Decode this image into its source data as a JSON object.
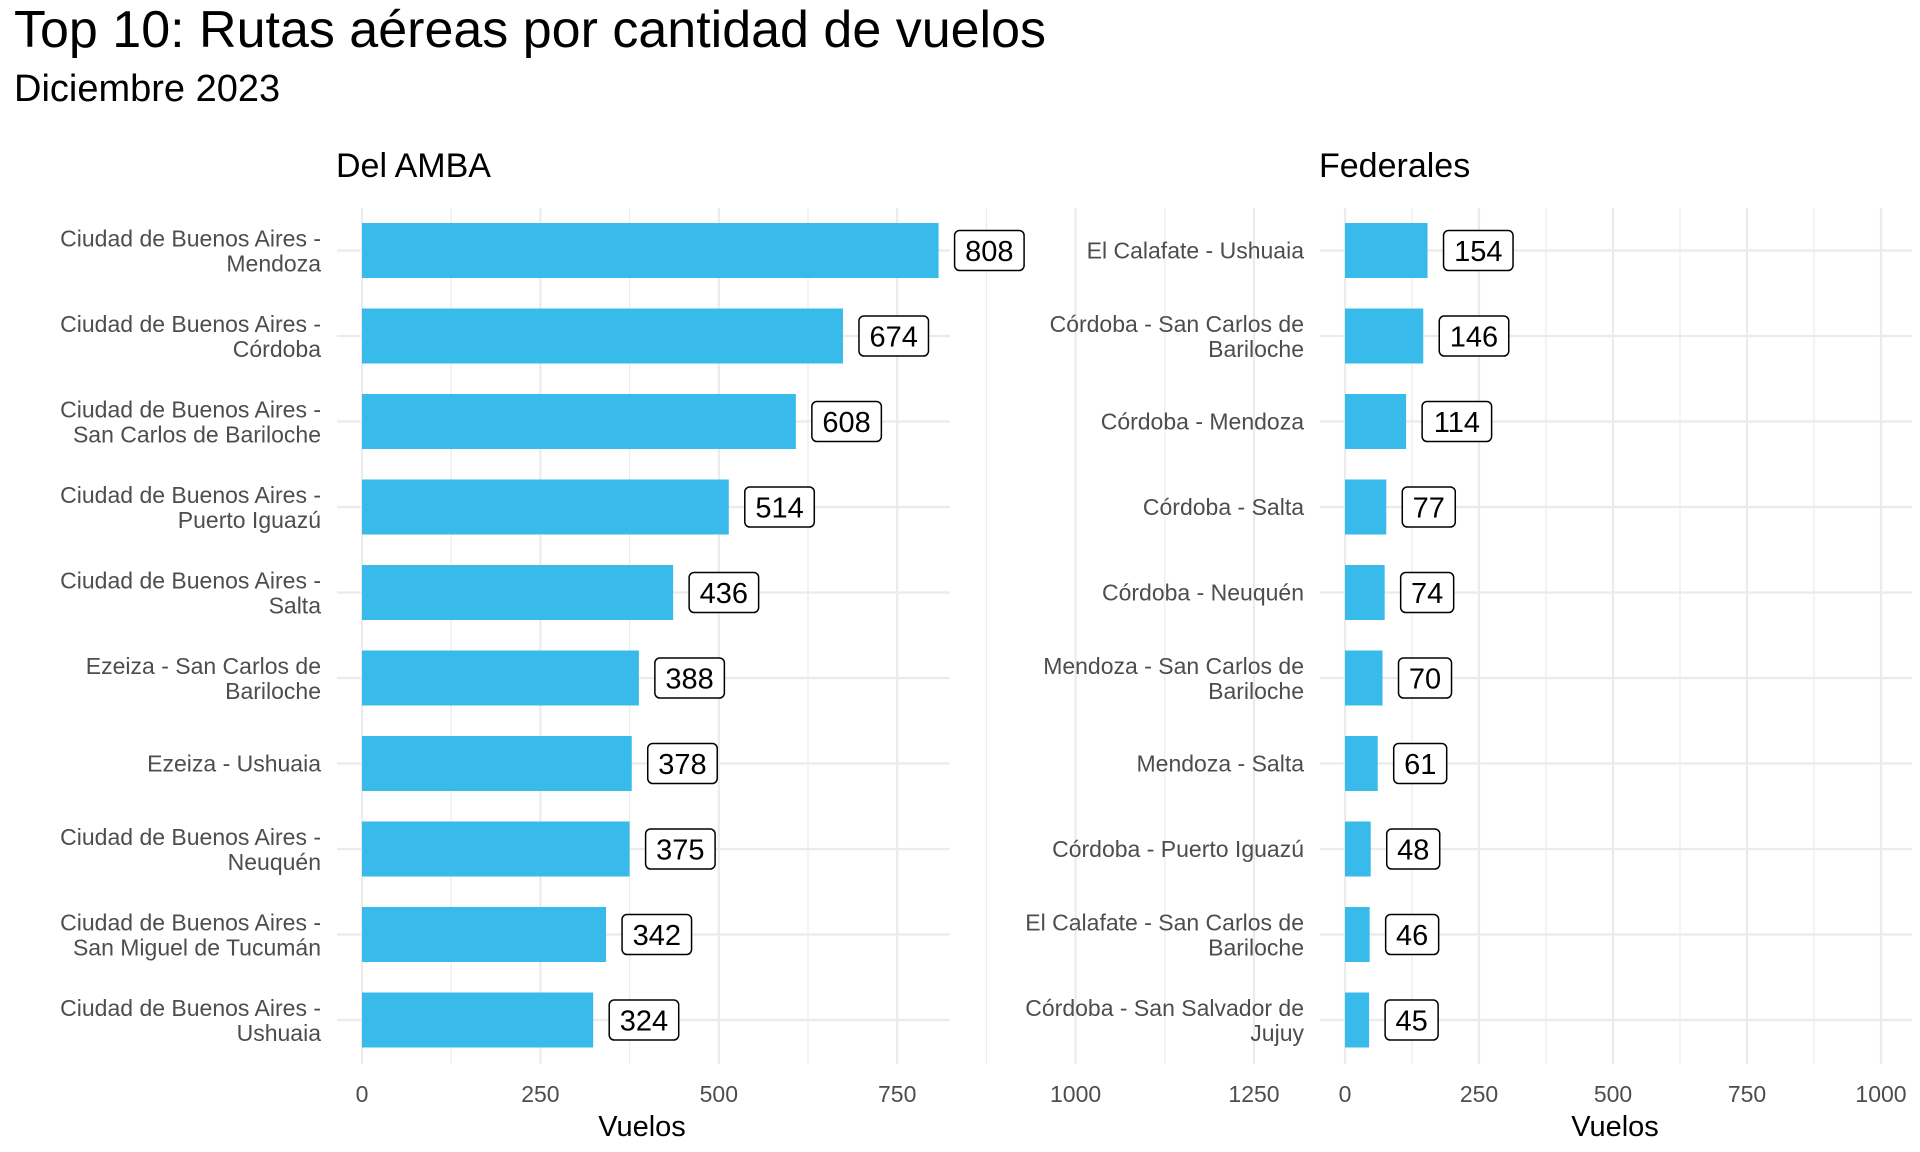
{
  "title": "Top 10: Rutas aéreas por cantidad de vuelos",
  "subtitle": "Diciembre 2023",
  "chart_data": [
    {
      "type": "bar",
      "orientation": "horizontal",
      "title": "Del AMBA",
      "xlabel": "Vuelos",
      "ylabel": "",
      "xlim": [
        0,
        1300
      ],
      "x_ticks": [
        0,
        250,
        500,
        750,
        1000,
        1250
      ],
      "bar_color": "#38bbea",
      "grid": true,
      "data_labels": true,
      "categories": [
        [
          "Ciudad de Buenos Aires -",
          "Mendoza"
        ],
        [
          "Ciudad de Buenos Aires -",
          "Córdoba"
        ],
        [
          "Ciudad de Buenos Aires -",
          "San Carlos de Bariloche"
        ],
        [
          "Ciudad de Buenos Aires -",
          "Puerto Iguazú"
        ],
        [
          "Ciudad de Buenos Aires -",
          "Salta"
        ],
        [
          "Ezeiza - San Carlos de",
          "Bariloche"
        ],
        [
          "Ezeiza - Ushuaia"
        ],
        [
          "Ciudad de Buenos Aires -",
          "Neuquén"
        ],
        [
          "Ciudad de Buenos Aires -",
          "San Miguel de Tucumán"
        ],
        [
          "Ciudad de Buenos Aires -",
          "Ushuaia"
        ]
      ],
      "values": [
        808,
        674,
        608,
        514,
        436,
        388,
        378,
        375,
        342,
        324
      ]
    },
    {
      "type": "bar",
      "orientation": "horizontal",
      "title": "Federales",
      "xlabel": "Vuelos",
      "ylabel": "",
      "xlim": [
        0,
        1000
      ],
      "x_ticks": [
        0,
        250,
        500,
        750,
        1000
      ],
      "bar_color": "#38bbea",
      "grid": true,
      "data_labels": true,
      "categories": [
        [
          "El Calafate - Ushuaia"
        ],
        [
          "Córdoba - San Carlos de",
          "Bariloche"
        ],
        [
          "Córdoba - Mendoza"
        ],
        [
          "Córdoba - Salta"
        ],
        [
          "Córdoba - Neuquén"
        ],
        [
          "Mendoza - San Carlos de",
          "Bariloche"
        ],
        [
          "Mendoza - Salta"
        ],
        [
          "Córdoba - Puerto Iguazú"
        ],
        [
          "El Calafate - San Carlos de",
          "Bariloche"
        ],
        [
          "Córdoba - San Salvador de",
          "Jujuy"
        ]
      ],
      "values": [
        154,
        146,
        114,
        77,
        74,
        70,
        61,
        48,
        46,
        45
      ]
    }
  ]
}
